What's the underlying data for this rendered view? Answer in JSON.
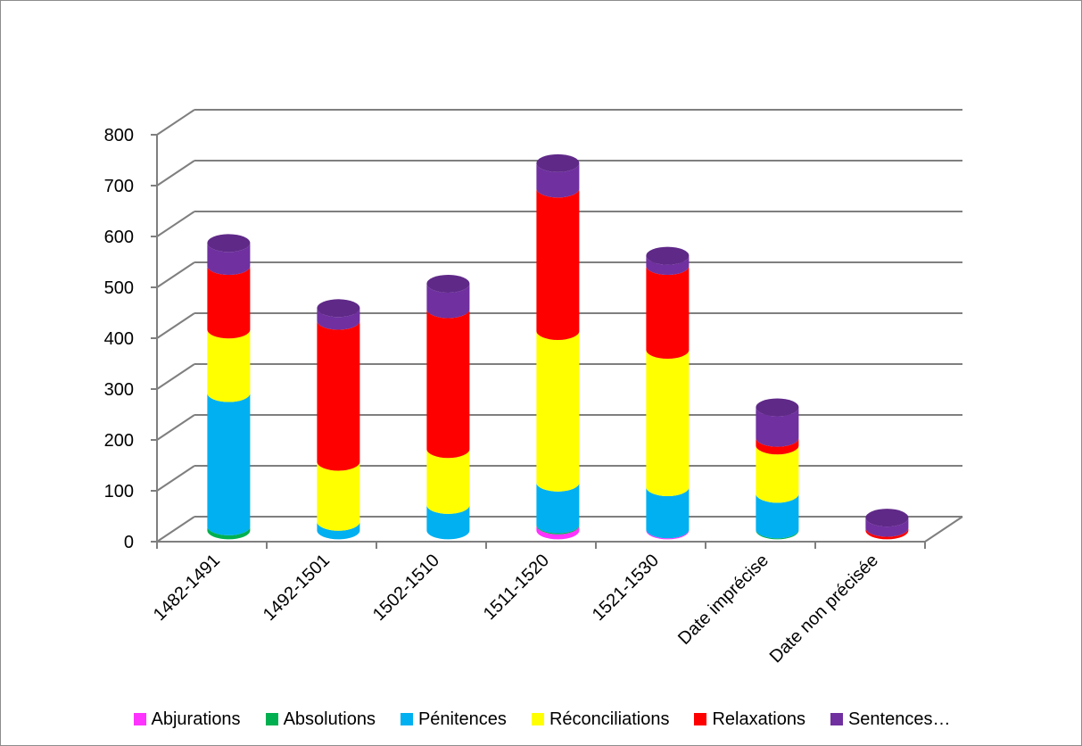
{
  "chart_data": {
    "type": "bar",
    "stacked": true,
    "three_d": true,
    "title": "",
    "xlabel": "",
    "ylabel": "",
    "ylim": [
      0,
      800
    ],
    "yticks": [
      0,
      100,
      200,
      300,
      400,
      500,
      600,
      700,
      800
    ],
    "ytick_labels": [
      "0",
      "100",
      "200",
      "300",
      "400",
      "500",
      "600",
      "700",
      "800"
    ],
    "grid": true,
    "legend_position": "bottom",
    "categories": [
      "1482-1491",
      "1492-1501",
      "1502-1510",
      "1511-1520",
      "1521-1530",
      "Date imprécise",
      "Date non précisée"
    ],
    "series": [
      {
        "name": "Abjurations",
        "color": "#ff33ff",
        "values": [
          0,
          0,
          0,
          10,
          2,
          0,
          0
        ]
      },
      {
        "name": "Absolutions",
        "color": "#00b050",
        "values": [
          8,
          0,
          0,
          2,
          0,
          2,
          0
        ]
      },
      {
        "name": "Pénitences",
        "color": "#00b0f0",
        "values": [
          262,
          17,
          50,
          82,
          83,
          70,
          0
        ]
      },
      {
        "name": "Réconciliations",
        "color": "#ffff00",
        "values": [
          125,
          118,
          110,
          298,
          270,
          95,
          0
        ]
      },
      {
        "name": "Relaxations",
        "color": "#ff0000",
        "values": [
          125,
          277,
          275,
          280,
          165,
          15,
          5
        ]
      },
      {
        "name": "Sentences…",
        "color": "#7030a0",
        "values": [
          45,
          25,
          50,
          50,
          20,
          60,
          20
        ]
      }
    ]
  }
}
